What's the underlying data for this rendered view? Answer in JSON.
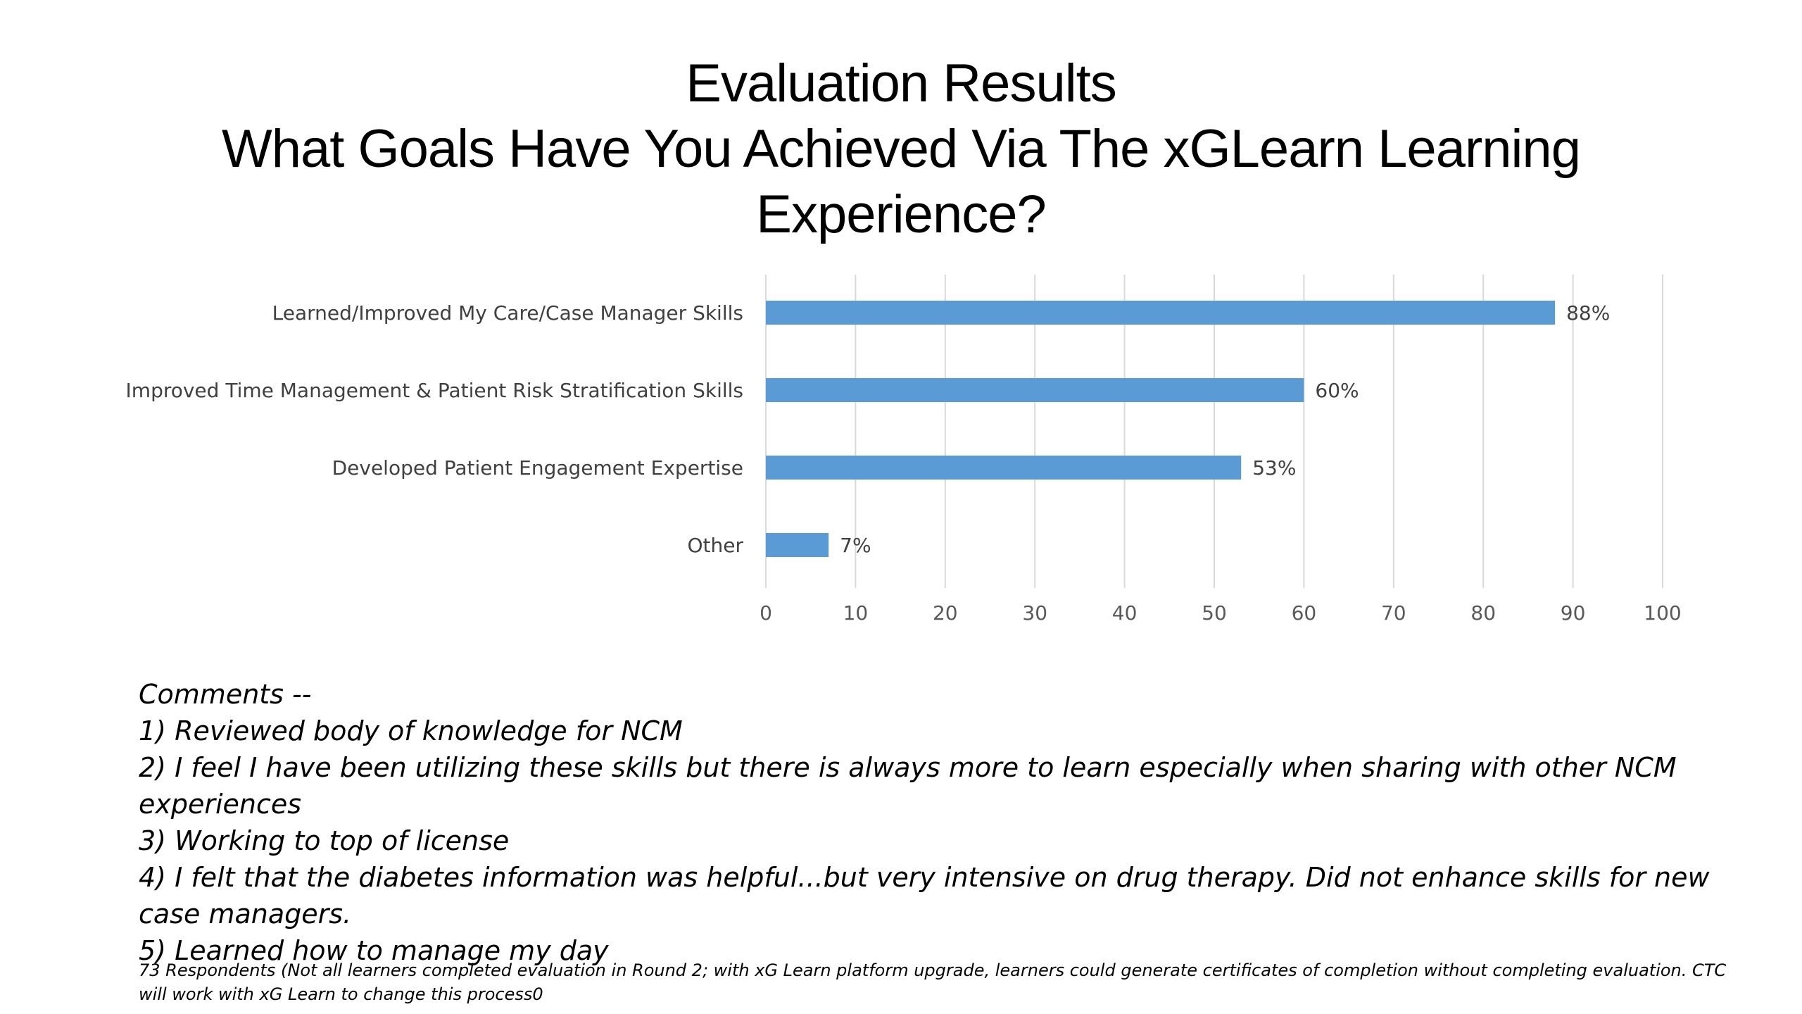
{
  "title": {
    "line1": "Evaluation Results",
    "line2": "What Goals Have You Achieved Via The xGLearn Learning",
    "line3": "Experience?"
  },
  "chart_data": {
    "type": "bar",
    "orientation": "horizontal",
    "categories": [
      "Learned/Improved My Care/Case Manager Skills",
      "Improved Time Management & Patient Risk Stratification Skills",
      "Developed Patient Engagement Expertise",
      "Other"
    ],
    "values": [
      88,
      60,
      53,
      7
    ],
    "data_labels": [
      "88%",
      "60%",
      "53%",
      "7%"
    ],
    "xlim": [
      0,
      100
    ],
    "x_ticks": [
      "0",
      "10",
      "20",
      "30",
      "40",
      "50",
      "60",
      "70",
      "80",
      "90",
      "100"
    ],
    "grid": true,
    "legend": "none",
    "bar_color": "#5B9BD5",
    "grid_color": "#D9D9D9"
  },
  "comments": {
    "heading": "Comments --",
    "items": [
      "1) Reviewed body of knowledge for NCM",
      "2) I feel I have been utilizing these skills but there is always more to learn especially when sharing with other NCM experiences",
      "3) Working to top of license",
      "4) I felt that the diabetes information was helpful...but very intensive on drug therapy.  Did not enhance skills for new case managers.",
      "5) Learned how to manage my day"
    ]
  },
  "footnote": "73 Respondents (Not all learners completed evaluation in Round 2; with xG Learn platform upgrade, learners could generate certificates of completion without completing evaluation.  CTC will work with xG Learn to change this process0"
}
